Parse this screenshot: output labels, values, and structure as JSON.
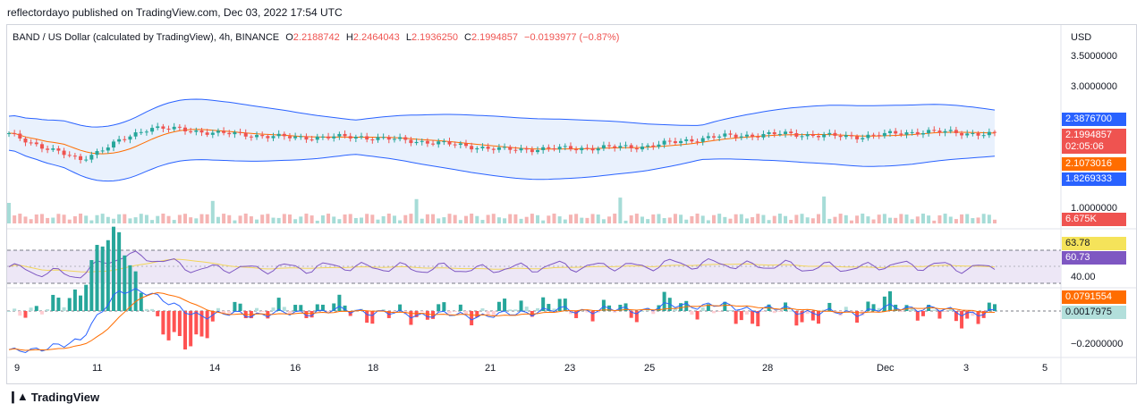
{
  "header": {
    "published": "reflectordayo published on TradingView.com, Dec 03, 2022 17:54 UTC"
  },
  "legend": {
    "symbol": "BAND / US Dollar (calculated by TradingView), 4h, BINANCE",
    "o_label": "O",
    "o_value": "2.2188742",
    "h_label": "H",
    "h_value": "2.2464043",
    "l_label": "L",
    "l_value": "2.1936250",
    "c_label": "C",
    "c_value": "2.1994857",
    "change": "−0.0193977 (−0.87%)"
  },
  "axis": {
    "currency": "USD",
    "price_ticks": [
      "3.5000000",
      "3.0000000",
      "1.0000000"
    ],
    "rsi_ticks": [
      "40.00"
    ],
    "macd_ticks": [
      "−0.2000000"
    ],
    "dates": [
      "9",
      "11",
      "14",
      "16",
      "18",
      "21",
      "23",
      "25",
      "28",
      "Dec",
      "3",
      "5"
    ]
  },
  "badges": {
    "bb_upper": "2.3876700",
    "last_price": "2.1994857",
    "countdown": "02:05:06",
    "bb_basis": "2.1073016",
    "bb_lower": "1.8269333",
    "volume": "6.675K",
    "rsi_ma": "63.78",
    "rsi": "60.73",
    "macd": "0.0791554",
    "histogram": "0.0017975"
  },
  "colors": {
    "up": "#26a69a",
    "down": "#ef5350",
    "bb": "#2962ff",
    "basis": "#ff6d00",
    "bb_fill": "#e3eefc",
    "rsi_line": "#7e57c2",
    "rsi_ma": "#f2d55b",
    "rsi_band": "#ede7f6"
  },
  "footer": {
    "brand": "TradingView"
  },
  "chart_data": {
    "type": "candlestick",
    "title": "BAND / US Dollar, 4h, BINANCE",
    "x": [
      "Nov 9",
      "Nov 11",
      "Nov 14",
      "Nov 16",
      "Nov 18",
      "Nov 21",
      "Nov 23",
      "Nov 25",
      "Nov 28",
      "Dec 1",
      "Dec 3"
    ],
    "close_approx": [
      2.2,
      1.78,
      2.32,
      2.22,
      2.15,
      2.16,
      2.07,
      1.95,
      1.97,
      2.0,
      2.16,
      2.21,
      2.16,
      2.25,
      2.2
    ],
    "last": {
      "open": 2.2188742,
      "high": 2.2464043,
      "low": 2.193625,
      "close": 2.1994857,
      "change": -0.0193977,
      "change_pct": -0.87
    },
    "bollinger": {
      "upper": 2.38767,
      "basis": 2.1073016,
      "lower": 1.8269333
    },
    "volume_last": "6.675K",
    "rsi": {
      "value": 60.73,
      "ma": 63.78,
      "levels": [
        70,
        30
      ]
    },
    "macd": {
      "macd": 0.0791554,
      "histogram": 0.0017975
    }
  }
}
